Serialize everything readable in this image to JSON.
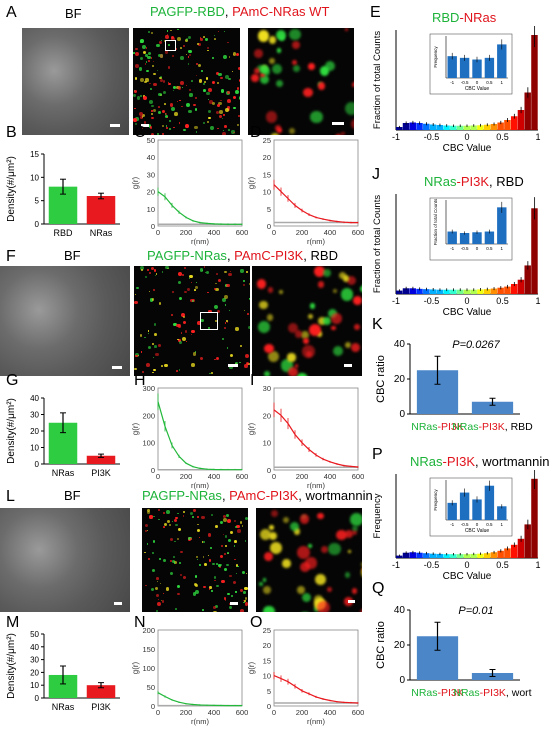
{
  "panels": {
    "A": {
      "letter": "A",
      "bf": "BF",
      "title_green": "PAGFP-RBD",
      "title_sep": ", ",
      "title_red": "PAmC-NRas",
      "title_suffix": " WT"
    },
    "B": {
      "letter": "B",
      "ylabel": "Density(#/μm²)",
      "categories": [
        "RBD",
        "NRas"
      ],
      "yticks": [
        "0",
        "5",
        "10",
        "15"
      ]
    },
    "C": {
      "letter": "C",
      "ylabel": "g(r)",
      "xlabel": "r(nm)",
      "yticks": [
        "0",
        "10",
        "20",
        "30",
        "40",
        "50"
      ],
      "xticks": [
        "0",
        "200",
        "400",
        "600"
      ]
    },
    "D": {
      "letter": "D",
      "ylabel": "g(r)",
      "xlabel": "r(nm)",
      "yticks": [
        "0",
        "5",
        "10",
        "15",
        "20",
        "25"
      ],
      "xticks": [
        "0",
        "200",
        "400",
        "600"
      ]
    },
    "E": {
      "letter": "E",
      "title_green": "RBD",
      "title_red": "-NRas",
      "ylabel": "Fraction of total Counts",
      "xlabel": "CBC Value",
      "xticks": [
        "-1",
        "-0.5",
        "0",
        "0.5",
        "1"
      ],
      "inset_ylabel": "Frequency",
      "inset_xlabel": "CBC Value",
      "inset_xticks": [
        "-1",
        "-0.5",
        "0",
        "0.5",
        "1"
      ]
    },
    "F": {
      "letter": "F",
      "bf": "BF",
      "title_green": "PAGFP-NRas",
      "title_sep": ", ",
      "title_red": "PAmC-PI3K",
      "title_suffix": ", RBD"
    },
    "G": {
      "letter": "G",
      "ylabel": "Density(#/μm²)",
      "categories": [
        "NRas",
        "PI3K"
      ],
      "yticks": [
        "0",
        "10",
        "20",
        "30",
        "40"
      ]
    },
    "H": {
      "letter": "H",
      "ylabel": "g(r)",
      "xlabel": "r(nm)",
      "yticks": [
        "0",
        "100",
        "200",
        "300"
      ],
      "xticks": [
        "0",
        "200",
        "400",
        "600"
      ]
    },
    "I": {
      "letter": "I",
      "ylabel": "g(r)",
      "xlabel": "r(nm)",
      "yticks": [
        "0",
        "10",
        "20",
        "30"
      ],
      "xticks": [
        "0",
        "200",
        "400",
        "600"
      ]
    },
    "J": {
      "letter": "J",
      "title_green": "NRas",
      "title_red": "-PI3K",
      "title_suffix": ", RBD",
      "ylabel": "Fraction of total Counts",
      "xlabel": "CBC Value",
      "xticks": [
        "-1",
        "-0.5",
        "0",
        "0.5",
        "1"
      ],
      "inset_ylabel": "Fraction of total Counts",
      "inset_xticks": [
        "-1",
        "-0.5",
        "0",
        "0.5",
        "1"
      ]
    },
    "K": {
      "letter": "K",
      "ylabel": "CBC ratio",
      "pvalue": "P=0.0267",
      "yticks": [
        "0",
        "20",
        "40"
      ],
      "cat1_green": "NRas",
      "cat1_red": "-PI3K",
      "cat2_green": "NRas",
      "cat2_red": "-PI3K",
      "cat2_suffix": ", RBD"
    },
    "L": {
      "letter": "L",
      "bf": "BF",
      "title_green": "PAGFP-NRas",
      "title_sep": ", ",
      "title_red": "PAmC-PI3K",
      "title_suffix": ", wortmannin"
    },
    "M": {
      "letter": "M",
      "ylabel": "Density(#/μm²)",
      "categories": [
        "NRas",
        "PI3K"
      ],
      "yticks": [
        "0",
        "10",
        "20",
        "30",
        "40",
        "50"
      ]
    },
    "N": {
      "letter": "N",
      "ylabel": "g(r)",
      "xlabel": "r(nm)",
      "yticks": [
        "0",
        "50",
        "100",
        "150",
        "200"
      ],
      "xticks": [
        "0",
        "200",
        "400",
        "600"
      ]
    },
    "O": {
      "letter": "O",
      "ylabel": "g(r)",
      "xlabel": "r(nm)",
      "yticks": [
        "0",
        "5",
        "10",
        "15",
        "20",
        "25"
      ],
      "xticks": [
        "0",
        "200",
        "400",
        "600"
      ]
    },
    "P": {
      "letter": "P",
      "title_green": "NRas",
      "title_red": "-PI3K",
      "title_suffix": ", wortmannin",
      "ylabel": "Frequency",
      "xlabel": "CBC Value",
      "xticks": [
        "-1",
        "-0.5",
        "0",
        "0.5",
        "1"
      ],
      "inset_ylabel": "Frequency",
      "inset_xlabel": "CBC Value",
      "inset_xticks": [
        "-1",
        "-0.5",
        "0",
        "0.5",
        "1"
      ]
    },
    "Q": {
      "letter": "Q",
      "ylabel": "CBC ratio",
      "pvalue": "P=0.01",
      "yticks": [
        "0",
        "20",
        "40"
      ],
      "cat1_green": "NRas",
      "cat1_red": "-PI3K",
      "cat2_green": "NRas",
      "cat2_red": "-PI3K",
      "cat2_suffix": ", wort"
    }
  },
  "chart_data": [
    {
      "id": "B",
      "type": "bar",
      "categories": [
        "RBD",
        "NRas"
      ],
      "values": [
        8,
        6
      ],
      "errors": [
        1.6,
        0.6
      ],
      "ylim": [
        0,
        15
      ],
      "colors": [
        "#2ecc40",
        "#e8191f"
      ]
    },
    {
      "id": "G",
      "type": "bar",
      "categories": [
        "NRas",
        "PI3K"
      ],
      "values": [
        25,
        5
      ],
      "errors": [
        6,
        1
      ],
      "ylim": [
        0,
        40
      ],
      "colors": [
        "#2ecc40",
        "#e8191f"
      ]
    },
    {
      "id": "M",
      "type": "bar",
      "categories": [
        "NRas",
        "PI3K"
      ],
      "values": [
        18,
        10
      ],
      "errors": [
        7,
        2
      ],
      "ylim": [
        0,
        50
      ],
      "colors": [
        "#2ecc40",
        "#e8191f"
      ]
    },
    {
      "id": "K",
      "type": "bar",
      "categories": [
        "NRas-PI3K",
        "NRas-PI3K, RBD"
      ],
      "values": [
        25,
        7
      ],
      "errors": [
        8,
        2
      ],
      "ylim": [
        0,
        40
      ],
      "colors": [
        "#4a86c8",
        "#4a86c8"
      ]
    },
    {
      "id": "Q",
      "type": "bar",
      "categories": [
        "NRas-PI3K",
        "NRas-PI3K, wort"
      ],
      "values": [
        25,
        4
      ],
      "errors": [
        8,
        2
      ],
      "ylim": [
        0,
        40
      ],
      "colors": [
        "#4a86c8",
        "#4a86c8"
      ]
    },
    {
      "id": "C",
      "type": "line",
      "x": [
        0,
        50,
        100,
        150,
        200,
        250,
        300,
        350,
        400,
        450,
        500,
        550,
        600
      ],
      "values": [
        20,
        17,
        12,
        8,
        5,
        3,
        2,
        1.5,
        1.2,
        1.1,
        1,
        1,
        1
      ],
      "ylim": [
        0,
        50
      ],
      "xlim": [
        0,
        600
      ],
      "color": "#22b83a"
    },
    {
      "id": "D",
      "type": "line",
      "x": [
        0,
        50,
        100,
        150,
        200,
        250,
        300,
        350,
        400,
        450,
        500,
        550,
        600
      ],
      "values": [
        12,
        10,
        8,
        6,
        4.5,
        3.3,
        2.5,
        2,
        1.6,
        1.3,
        1.1,
        1,
        1
      ],
      "ylim": [
        0,
        25
      ],
      "xlim": [
        0,
        600
      ],
      "color": "#e8191f"
    },
    {
      "id": "H",
      "type": "line",
      "x": [
        0,
        50,
        100,
        150,
        200,
        250,
        300,
        350,
        400,
        450,
        500,
        550,
        600
      ],
      "values": [
        250,
        160,
        90,
        50,
        25,
        12,
        6,
        3,
        2,
        1.5,
        1,
        1,
        1
      ],
      "ylim": [
        0,
        300
      ],
      "xlim": [
        0,
        600
      ],
      "color": "#22b83a"
    },
    {
      "id": "I",
      "type": "line",
      "x": [
        0,
        50,
        100,
        150,
        200,
        250,
        300,
        350,
        400,
        450,
        500,
        550,
        600
      ],
      "values": [
        22,
        20,
        17,
        13,
        10,
        7.5,
        5.5,
        4,
        3,
        2.2,
        1.6,
        1.3,
        1.1
      ],
      "ylim": [
        0,
        30
      ],
      "xlim": [
        0,
        600
      ],
      "color": "#e8191f"
    },
    {
      "id": "N",
      "type": "line",
      "x": [
        0,
        50,
        100,
        150,
        200,
        250,
        300,
        350,
        400,
        450,
        500,
        550,
        600
      ],
      "values": [
        35,
        25,
        16,
        10,
        6,
        4,
        2.5,
        2,
        1.5,
        1.2,
        1,
        1,
        1
      ],
      "ylim": [
        0,
        200
      ],
      "xlim": [
        0,
        600
      ],
      "color": "#22b83a"
    },
    {
      "id": "O",
      "type": "line",
      "x": [
        0,
        50,
        100,
        150,
        200,
        250,
        300,
        350,
        400,
        450,
        500,
        550,
        600
      ],
      "values": [
        10,
        9,
        8,
        6.5,
        5,
        4,
        3,
        2.3,
        1.8,
        1.4,
        1.2,
        1.1,
        1
      ],
      "ylim": [
        0,
        25
      ],
      "xlim": [
        0,
        600
      ],
      "color": "#e8191f"
    },
    {
      "id": "E",
      "type": "bar",
      "x": [
        -1,
        -0.9,
        -0.8,
        -0.7,
        -0.6,
        -0.5,
        -0.4,
        -0.3,
        -0.2,
        -0.1,
        0,
        0.1,
        0.2,
        0.3,
        0.4,
        0.5,
        0.6,
        0.7,
        0.8,
        0.9,
        1
      ],
      "values": [
        0.012,
        0.028,
        0.03,
        0.028,
        0.025,
        0.022,
        0.02,
        0.018,
        0.017,
        0.017,
        0.017,
        0.018,
        0.019,
        0.021,
        0.024,
        0.03,
        0.04,
        0.055,
        0.08,
        0.15,
        0.38
      ],
      "ylim": [
        0,
        0.4
      ],
      "xlim": [
        -1,
        1
      ]
    },
    {
      "id": "E-inset",
      "type": "bar",
      "categories": [
        "-1",
        "-0.5",
        "0",
        "0.5",
        "1"
      ],
      "values": [
        0.13,
        0.12,
        0.11,
        0.12,
        0.2
      ],
      "ylim": [
        0,
        0.25
      ]
    },
    {
      "id": "J",
      "type": "bar",
      "x": [
        -1,
        -0.9,
        -0.8,
        -0.7,
        -0.6,
        -0.5,
        -0.4,
        -0.3,
        -0.2,
        -0.1,
        0,
        0.1,
        0.2,
        0.3,
        0.4,
        0.5,
        0.6,
        0.7,
        0.8,
        0.9,
        1
      ],
      "values": [
        0.012,
        0.02,
        0.02,
        0.018,
        0.017,
        0.016,
        0.015,
        0.015,
        0.015,
        0.015,
        0.015,
        0.015,
        0.016,
        0.017,
        0.019,
        0.022,
        0.026,
        0.035,
        0.05,
        0.1,
        0.3
      ],
      "ylim": [
        0,
        0.35
      ],
      "xlim": [
        -1,
        1
      ]
    },
    {
      "id": "J-inset",
      "type": "bar",
      "categories": [
        "-1",
        "-0.5",
        "0",
        "0.5",
        "1"
      ],
      "values": [
        0.17,
        0.15,
        0.16,
        0.17,
        0.5
      ],
      "ylim": [
        0,
        0.6
      ]
    },
    {
      "id": "P",
      "type": "bar",
      "x": [
        -1,
        -0.9,
        -0.8,
        -0.7,
        -0.6,
        -0.5,
        -0.4,
        -0.3,
        -0.2,
        -0.1,
        0,
        0.1,
        0.2,
        0.3,
        0.4,
        0.5,
        0.6,
        0.7,
        0.8,
        0.9,
        1
      ],
      "values": [
        0.01,
        0.022,
        0.024,
        0.022,
        0.02,
        0.018,
        0.017,
        0.016,
        0.016,
        0.016,
        0.016,
        0.017,
        0.018,
        0.02,
        0.024,
        0.03,
        0.04,
        0.055,
        0.08,
        0.14,
        0.33
      ],
      "ylim": [
        0,
        0.35
      ],
      "xlim": [
        -1,
        1
      ]
    },
    {
      "id": "P-inset",
      "type": "bar",
      "categories": [
        "-1",
        "-0.5",
        "0",
        "0.5",
        "1"
      ],
      "values": [
        0.15,
        0.24,
        0.18,
        0.3,
        0.12
      ],
      "ylim": [
        0,
        0.35
      ]
    }
  ],
  "colors": {
    "green": "#1db33a",
    "red": "#e0141c",
    "blue": "#4a86c8"
  }
}
